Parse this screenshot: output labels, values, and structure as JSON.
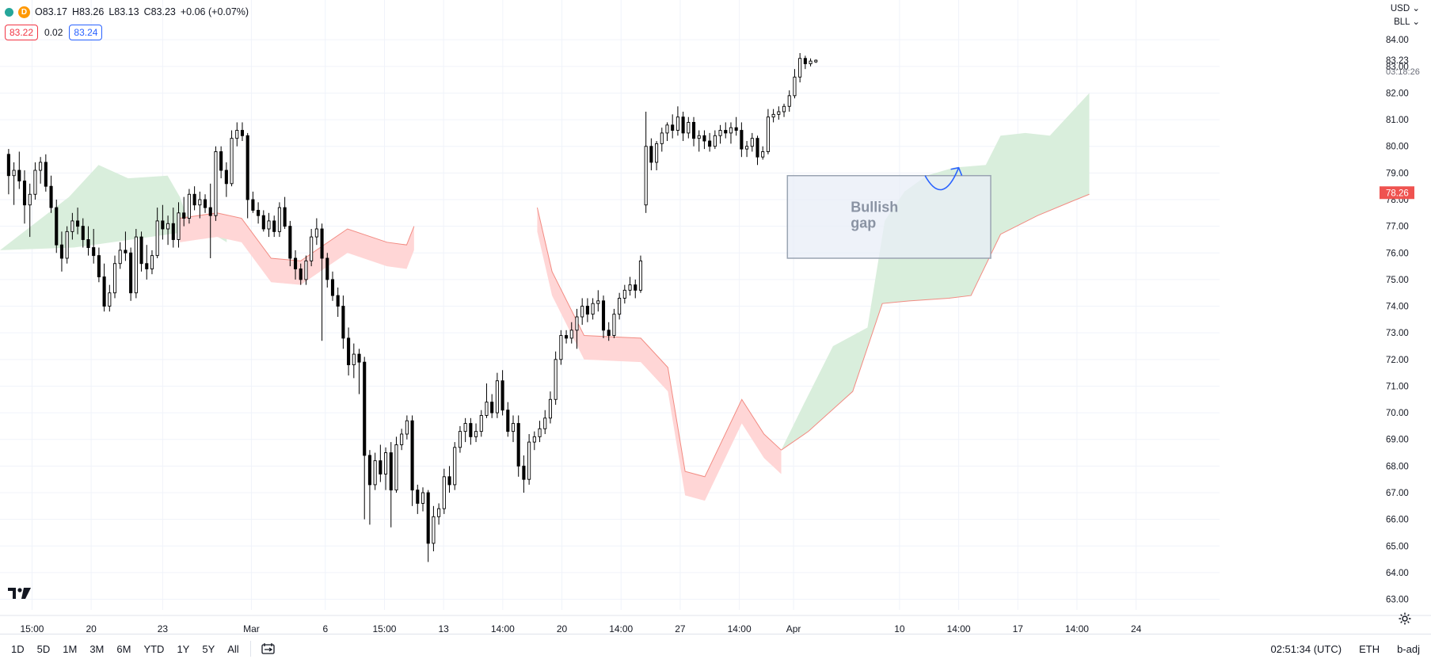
{
  "header": {
    "open": "O83.17",
    "high": "H83.26",
    "low": "L83.13",
    "close": "C83.23",
    "change": "+0.06 (+0.07%)",
    "interval_badge": "D",
    "bid": "83.22",
    "spread": "0.02",
    "ask": "83.24"
  },
  "right_header": {
    "currency": "USD",
    "unit": "BLL"
  },
  "price_labels": {
    "last": "83.23",
    "countdown": "03:18:26",
    "cloud_edge": "78.26"
  },
  "bottom_bar": {
    "ranges": [
      "1D",
      "5D",
      "1M",
      "3M",
      "6M",
      "YTD",
      "1Y",
      "5Y",
      "All"
    ],
    "time": "02:51:34 (UTC)",
    "session": "ETH",
    "adjust": "b-adj"
  },
  "colors": {
    "up_candle": "#ffffff",
    "down_candle": "#000000",
    "bullish_cloud": "#d9eedc",
    "bearish_cloud": "#ffd6d6",
    "cloud_line": "#f28b82",
    "gap_box": "#e8eef7",
    "arrow": "#2962ff",
    "last_price_label": "#ef5350"
  },
  "chart_data": {
    "type": "candlestick",
    "title": "",
    "ylim": [
      62.6,
      84.6
    ],
    "y_ticks": [
      63,
      64,
      65,
      66,
      67,
      68,
      69,
      70,
      71,
      72,
      73,
      74,
      75,
      76,
      77,
      78,
      79,
      80,
      81,
      82,
      83,
      84
    ],
    "x_ticks": [
      {
        "label": "15:00",
        "x": 0.9
      },
      {
        "label": "20",
        "x": 3.3
      },
      {
        "label": "23",
        "x": 6.2
      },
      {
        "label": "Mar",
        "x": 9.8
      },
      {
        "label": "6",
        "x": 12.8
      },
      {
        "label": "15:00",
        "x": 15.2
      },
      {
        "label": "13",
        "x": 17.6
      },
      {
        "label": "14:00",
        "x": 20.0
      },
      {
        "label": "20",
        "x": 22.4
      },
      {
        "label": "14:00",
        "x": 24.8
      },
      {
        "label": "27",
        "x": 27.2
      },
      {
        "label": "14:00",
        "x": 29.6
      },
      {
        "label": "Apr",
        "x": 31.8
      },
      {
        "label": "10",
        "x": 36.1
      },
      {
        "label": "14:00",
        "x": 38.5
      },
      {
        "label": "17",
        "x": 40.9
      },
      {
        "label": "14:00",
        "x": 43.3
      },
      {
        "label": "24",
        "x": 45.7
      }
    ],
    "x_range": [
      -0.4,
      47.8
    ],
    "ohlc": [
      [
        0,
        79.7,
        79.9,
        78.2,
        78.9
      ],
      [
        1,
        78.9,
        79.4,
        77.8,
        79.1
      ],
      [
        2,
        79.1,
        79.8,
        78.4,
        78.7
      ],
      [
        3,
        78.7,
        79.1,
        77.1,
        77.8
      ],
      [
        4,
        77.8,
        78.6,
        76.6,
        78.2
      ],
      [
        5,
        78.2,
        79.4,
        78.0,
        79.1
      ],
      [
        6,
        79.1,
        79.6,
        78.6,
        79.4
      ],
      [
        7,
        79.4,
        79.7,
        78.3,
        78.5
      ],
      [
        8,
        78.5,
        78.9,
        77.5,
        77.7
      ],
      [
        9,
        77.7,
        78.0,
        76.0,
        76.3
      ],
      [
        10,
        76.3,
        76.8,
        75.3,
        75.8
      ],
      [
        11,
        75.8,
        77.0,
        75.6,
        76.8
      ],
      [
        12,
        76.8,
        77.5,
        76.5,
        77.2
      ],
      [
        13,
        77.2,
        77.7,
        76.7,
        77.0
      ],
      [
        14,
        77.0,
        77.3,
        76.2,
        76.5
      ],
      [
        15,
        76.5,
        77.0,
        75.9,
        76.2
      ],
      [
        16,
        76.2,
        76.9,
        75.6,
        75.9
      ],
      [
        17,
        75.9,
        76.2,
        74.9,
        75.1
      ],
      [
        18,
        75.1,
        75.6,
        73.8,
        74.0
      ],
      [
        19,
        74.0,
        74.8,
        73.8,
        74.5
      ],
      [
        20,
        74.5,
        75.9,
        74.3,
        75.6
      ],
      [
        21,
        75.6,
        76.4,
        75.4,
        76.1
      ],
      [
        22,
        76.1,
        76.8,
        75.7,
        76.0
      ],
      [
        23,
        76.0,
        76.2,
        74.2,
        74.5
      ],
      [
        24,
        74.5,
        76.9,
        74.3,
        76.6
      ],
      [
        25,
        76.6,
        76.8,
        75.3,
        75.6
      ],
      [
        26,
        75.6,
        76.3,
        75.0,
        75.4
      ],
      [
        27,
        75.4,
        76.1,
        75.2,
        75.9
      ],
      [
        28,
        75.9,
        77.7,
        75.8,
        77.2
      ],
      [
        29,
        77.2,
        77.8,
        76.5,
        76.9
      ],
      [
        30,
        76.9,
        77.4,
        76.3,
        77.1
      ],
      [
        31,
        77.1,
        77.7,
        76.2,
        76.5
      ],
      [
        32,
        76.5,
        77.9,
        76.2,
        77.5
      ],
      [
        33,
        77.5,
        78.1,
        77.0,
        77.3
      ],
      [
        34,
        77.3,
        78.4,
        77.1,
        78.2
      ],
      [
        35,
        78.2,
        78.5,
        77.6,
        77.8
      ],
      [
        36,
        77.8,
        78.3,
        77.3,
        78.0
      ],
      [
        37,
        78.0,
        78.2,
        77.5,
        77.7
      ],
      [
        38,
        77.7,
        78.6,
        75.8,
        77.4
      ],
      [
        39,
        77.4,
        80.0,
        77.2,
        79.8
      ],
      [
        40,
        79.8,
        80.0,
        78.8,
        79.1
      ],
      [
        41,
        79.1,
        79.4,
        78.1,
        78.6
      ],
      [
        42,
        78.6,
        80.6,
        78.5,
        80.3
      ],
      [
        43,
        80.3,
        80.9,
        80.0,
        80.6
      ],
      [
        44,
        80.6,
        80.9,
        80.2,
        80.4
      ],
      [
        45,
        80.4,
        80.5,
        77.3,
        78.0
      ],
      [
        46,
        78.0,
        78.3,
        77.5,
        77.6
      ],
      [
        47,
        77.6,
        77.9,
        77.1,
        77.4
      ],
      [
        48,
        77.4,
        77.6,
        76.8,
        76.9
      ],
      [
        49,
        76.9,
        77.5,
        76.6,
        77.2
      ],
      [
        50,
        77.2,
        77.4,
        76.6,
        76.8
      ],
      [
        51,
        76.8,
        77.9,
        76.6,
        77.7
      ],
      [
        52,
        77.7,
        78.1,
        76.9,
        77.0
      ],
      [
        53,
        77.0,
        77.2,
        75.5,
        75.8
      ],
      [
        54,
        75.8,
        76.1,
        75.0,
        75.4
      ],
      [
        55,
        75.4,
        75.6,
        74.8,
        75.0
      ],
      [
        56,
        75.0,
        75.9,
        74.8,
        75.7
      ],
      [
        57,
        75.7,
        76.9,
        75.5,
        76.6
      ],
      [
        58,
        76.6,
        77.3,
        76.3,
        76.9
      ],
      [
        59,
        76.9,
        77.1,
        72.7,
        75.8
      ],
      [
        60,
        75.8,
        76.0,
        74.7,
        75.0
      ],
      [
        61,
        75.0,
        75.3,
        74.2,
        74.4
      ],
      [
        62,
        74.4,
        74.7,
        73.6,
        74.0
      ],
      [
        63,
        74.0,
        74.4,
        72.4,
        72.8
      ],
      [
        64,
        72.8,
        73.2,
        71.4,
        71.8
      ],
      [
        65,
        71.8,
        72.6,
        71.3,
        72.2
      ],
      [
        66,
        72.2,
        72.4,
        70.7,
        71.9
      ],
      [
        67,
        71.9,
        72.1,
        66.0,
        68.4
      ],
      [
        68,
        68.4,
        68.6,
        65.8,
        67.3
      ],
      [
        69,
        67.3,
        68.5,
        67.1,
        68.2
      ],
      [
        70,
        68.2,
        68.8,
        67.4,
        67.7
      ],
      [
        71,
        67.7,
        68.7,
        67.1,
        68.5
      ],
      [
        72,
        68.5,
        68.9,
        65.7,
        67.1
      ],
      [
        73,
        67.1,
        69.1,
        67.0,
        68.8
      ],
      [
        74,
        68.8,
        69.4,
        68.6,
        69.2
      ],
      [
        75,
        69.2,
        69.9,
        69.0,
        69.7
      ],
      [
        76,
        69.7,
        69.9,
        66.5,
        67.1
      ],
      [
        77,
        67.1,
        67.3,
        66.2,
        66.6
      ],
      [
        78,
        66.6,
        67.2,
        66.3,
        67.0
      ],
      [
        79,
        67.0,
        67.1,
        64.4,
        65.1
      ],
      [
        80,
        65.1,
        66.5,
        64.8,
        66.1
      ],
      [
        81,
        66.1,
        66.6,
        65.8,
        66.4
      ],
      [
        82,
        66.4,
        67.9,
        66.2,
        67.6
      ],
      [
        83,
        67.6,
        68.0,
        67.0,
        67.3
      ],
      [
        84,
        67.3,
        68.9,
        67.1,
        68.7
      ],
      [
        85,
        68.7,
        69.5,
        68.5,
        69.3
      ],
      [
        86,
        69.3,
        69.8,
        68.9,
        69.6
      ],
      [
        87,
        69.6,
        69.8,
        68.8,
        69.1
      ],
      [
        88,
        69.1,
        69.6,
        68.9,
        69.3
      ],
      [
        89,
        69.3,
        70.1,
        69.1,
        69.9
      ],
      [
        90,
        69.9,
        71.1,
        69.8,
        70.4
      ],
      [
        91,
        70.4,
        70.7,
        69.8,
        70.0
      ],
      [
        92,
        70.0,
        71.5,
        69.8,
        71.2
      ],
      [
        93,
        71.2,
        71.6,
        69.9,
        70.1
      ],
      [
        94,
        70.1,
        70.4,
        69.1,
        69.3
      ],
      [
        95,
        69.3,
        69.9,
        68.9,
        69.6
      ],
      [
        96,
        69.6,
        69.9,
        67.6,
        68.0
      ],
      [
        97,
        68.0,
        68.4,
        67.0,
        67.5
      ],
      [
        98,
        67.5,
        69.2,
        67.3,
        68.9
      ],
      [
        99,
        68.9,
        69.3,
        68.6,
        69.1
      ],
      [
        100,
        69.1,
        69.7,
        68.9,
        69.4
      ],
      [
        101,
        69.4,
        70.1,
        69.2,
        69.8
      ],
      [
        102,
        69.8,
        70.8,
        69.6,
        70.5
      ],
      [
        103,
        70.5,
        72.3,
        70.3,
        72.0
      ],
      [
        104,
        72.0,
        73.1,
        71.8,
        72.9
      ],
      [
        105,
        72.9,
        73.1,
        72.6,
        72.8
      ],
      [
        106,
        72.8,
        73.4,
        72.6,
        73.1
      ],
      [
        107,
        73.1,
        73.9,
        72.4,
        73.6
      ],
      [
        108,
        73.6,
        74.3,
        73.3,
        74.0
      ],
      [
        109,
        74.0,
        74.3,
        73.4,
        73.7
      ],
      [
        110,
        73.7,
        74.3,
        73.5,
        74.1
      ],
      [
        111,
        74.1,
        74.6,
        73.8,
        74.2
      ],
      [
        112,
        74.2,
        74.4,
        72.8,
        73.1
      ],
      [
        113,
        73.1,
        73.4,
        72.7,
        72.9
      ],
      [
        114,
        72.9,
        73.9,
        72.8,
        73.7
      ],
      [
        115,
        73.7,
        74.5,
        73.5,
        74.3
      ],
      [
        116,
        74.3,
        74.8,
        74.1,
        74.6
      ],
      [
        117,
        74.6,
        75.1,
        74.4,
        74.8
      ],
      [
        118,
        74.8,
        75.0,
        74.3,
        74.6
      ],
      [
        119,
        74.6,
        75.9,
        74.5,
        75.7
      ],
      [
        120,
        77.8,
        81.3,
        77.5,
        80.0
      ],
      [
        121,
        80.0,
        80.3,
        79.1,
        79.4
      ],
      [
        122,
        79.4,
        80.2,
        79.1,
        80.1
      ],
      [
        123,
        80.1,
        80.7,
        79.8,
        80.5
      ],
      [
        124,
        80.5,
        80.9,
        80.2,
        80.8
      ],
      [
        125,
        80.8,
        81.2,
        80.3,
        80.6
      ],
      [
        126,
        80.6,
        81.5,
        80.4,
        81.1
      ],
      [
        127,
        81.1,
        81.3,
        80.2,
        80.5
      ],
      [
        128,
        80.5,
        81.1,
        80.3,
        80.9
      ],
      [
        129,
        80.9,
        81.1,
        80.0,
        80.3
      ],
      [
        130,
        80.3,
        80.6,
        79.8,
        80.4
      ],
      [
        131,
        80.4,
        80.6,
        79.9,
        80.2
      ],
      [
        132,
        80.2,
        80.5,
        79.8,
        80.0
      ],
      [
        133,
        80.0,
        80.6,
        79.9,
        80.4
      ],
      [
        134,
        80.4,
        80.8,
        80.1,
        80.6
      ],
      [
        135,
        80.6,
        80.9,
        80.3,
        80.5
      ],
      [
        136,
        80.5,
        80.9,
        80.1,
        80.7
      ],
      [
        137,
        80.7,
        81.1,
        80.4,
        80.6
      ],
      [
        138,
        80.6,
        80.9,
        79.6,
        79.9
      ],
      [
        139,
        79.9,
        80.2,
        79.6,
        80.0
      ],
      [
        140,
        80.0,
        80.5,
        79.8,
        80.3
      ],
      [
        141,
        80.3,
        80.4,
        79.3,
        79.6
      ],
      [
        142,
        79.6,
        80.0,
        79.5,
        79.8
      ],
      [
        143,
        79.8,
        81.4,
        79.7,
        81.1
      ],
      [
        144,
        81.1,
        81.4,
        80.9,
        81.2
      ],
      [
        145,
        81.2,
        81.5,
        81.0,
        81.3
      ],
      [
        146,
        81.3,
        81.6,
        81.1,
        81.5
      ],
      [
        147,
        81.5,
        82.1,
        81.3,
        81.9
      ],
      [
        148,
        81.9,
        82.9,
        81.8,
        82.6
      ],
      [
        149,
        82.6,
        83.5,
        82.4,
        83.3
      ],
      [
        150,
        83.3,
        83.4,
        82.9,
        83.1
      ],
      [
        151,
        83.1,
        83.3,
        83.0,
        83.2
      ],
      [
        152,
        83.17,
        83.26,
        83.13,
        83.23
      ]
    ],
    "cloud": {
      "green_top": [
        [
          -0.4,
          76.1
        ],
        [
          2.4,
          78.1
        ],
        [
          3.6,
          79.3
        ],
        [
          4.8,
          78.8
        ],
        [
          6.4,
          78.9
        ],
        [
          6.9,
          78.1
        ],
        [
          7.2,
          77.3
        ],
        [
          8.8,
          76.4
        ]
      ],
      "red_band": [
        [
          [
            6.9,
            77.3
          ],
          [
            8.4,
            77.5
          ],
          [
            9.4,
            77.3
          ],
          [
            10.6,
            75.8
          ],
          [
            11.8,
            75.7
          ],
          [
            13.7,
            76.9
          ],
          [
            15.3,
            76.4
          ],
          [
            16.1,
            76.3
          ],
          [
            16.4,
            77.0
          ]
        ],
        [
          [
            21.4,
            77.7
          ],
          [
            22.0,
            75.3
          ],
          [
            23.3,
            72.9
          ],
          [
            25.6,
            72.8
          ],
          [
            26.7,
            71.7
          ],
          [
            27.4,
            67.8
          ],
          [
            28.2,
            67.6
          ],
          [
            29.7,
            70.5
          ],
          [
            30.6,
            69.2
          ],
          [
            31.3,
            68.6
          ]
        ]
      ],
      "green_bottom": [
        [
          31.3,
          68.6
        ],
        [
          32.4,
          69.3
        ],
        [
          34.2,
          70.8
        ],
        [
          35.4,
          74.1
        ],
        [
          36.5,
          74.2
        ],
        [
          38.1,
          74.3
        ],
        [
          39.0,
          74.4
        ],
        [
          40.2,
          76.7
        ],
        [
          41.7,
          77.4
        ],
        [
          43.0,
          77.9
        ],
        [
          43.8,
          78.2
        ]
      ]
    },
    "gap_box": {
      "x0": 31.55,
      "x1": 39.8,
      "y0": 75.8,
      "y1": 78.9,
      "label": "Bullish gap"
    },
    "last_price": 83.23
  }
}
